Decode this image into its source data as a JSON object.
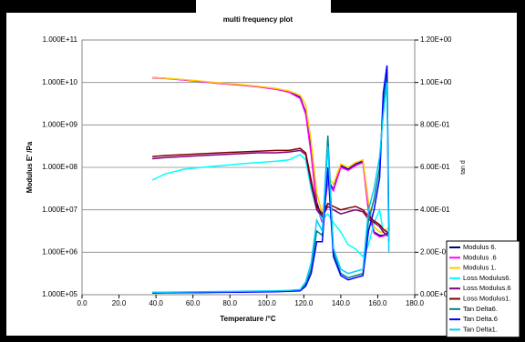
{
  "chart_data": {
    "type": "line",
    "title": "multi frequency plot",
    "x_label": "Temperature /°C",
    "y_label": "Modulus  E' /Pa",
    "y2_label": "tan d",
    "log_y": true,
    "grid": true,
    "legend": "lower right",
    "xlim": [
      0,
      180
    ],
    "xticks": [
      {
        "value": 0,
        "label": "0.0"
      },
      {
        "value": 20,
        "label": "20.0"
      },
      {
        "value": 40,
        "label": "40.0"
      },
      {
        "value": 60,
        "label": "60.0"
      },
      {
        "value": 80,
        "label": "80.0"
      },
      {
        "value": 100,
        "label": "100.0"
      },
      {
        "value": 120,
        "label": "120.0"
      },
      {
        "value": 140,
        "label": "140.0"
      },
      {
        "value": 160,
        "label": "160.0"
      },
      {
        "value": 180,
        "label": "180.0"
      }
    ],
    "ylim": [
      100000,
      100000000000
    ],
    "yticks": [
      {
        "value": 100000,
        "label": "1.000E+05"
      },
      {
        "value": 1000000,
        "label": "1.000E+06"
      },
      {
        "value": 10000000,
        "label": "1.000E+07"
      },
      {
        "value": 100000000,
        "label": "1.000E+08"
      },
      {
        "value": 1000000000,
        "label": "1.000E+09"
      },
      {
        "value": 10000000000,
        "label": "1.000E+10"
      },
      {
        "value": 100000000000,
        "label": "1.000E+11"
      }
    ],
    "y2lim": [
      0,
      1.2
    ],
    "y2ticks": [
      {
        "value": 0,
        "label": "0.00E+00"
      },
      {
        "value": 0.2,
        "label": "2.00E-01"
      },
      {
        "value": 0.4,
        "label": "4.00E-01"
      },
      {
        "value": 0.6,
        "label": "6.00E-01"
      },
      {
        "value": 0.8,
        "label": "8.00E-01"
      },
      {
        "value": 1.0,
        "label": "1.00E+00"
      },
      {
        "value": 1.2,
        "label": "1.20E+00"
      }
    ],
    "x": [
      38,
      45,
      55,
      65,
      75,
      85,
      95,
      105,
      112,
      118,
      121,
      124,
      127,
      130,
      133,
      136,
      140,
      144,
      148,
      152,
      155,
      158,
      161,
      163,
      165,
      166
    ],
    "series": [
      {
        "name": "Modulus 6.",
        "color": "#000080",
        "values": [
          13000000000.0,
          12500000000.0,
          11500000000.0,
          10500000000.0,
          9500000000.0,
          8800000000.0,
          8000000000.0,
          7000000000.0,
          6000000000.0,
          4500000000.0,
          2000000000.0,
          250000000.0,
          15000000.0,
          6000000.0,
          50000000.0,
          30000000.0,
          110000000.0,
          90000000.0,
          120000000.0,
          140000000.0,
          10000000.0,
          3000000.0,
          2500000.0,
          2500000.0,
          2800000.0,
          3000000.0
        ]
      },
      {
        "name": "Modulus .6",
        "color": "#ff00ff",
        "values": [
          12800000000.0,
          12400000000.0,
          11400000000.0,
          10400000000.0,
          9400000000.0,
          8700000000.0,
          7900000000.0,
          6900000000.0,
          5900000000.0,
          4200000000.0,
          1800000000.0,
          200000000.0,
          12000000.0,
          5000000.0,
          45000000.0,
          28000000.0,
          100000000.0,
          85000000.0,
          110000000.0,
          130000000.0,
          9000000.0,
          2800000.0,
          2300000.0,
          2400000.0,
          2600000.0,
          2800000.0
        ]
      },
      {
        "name": "Modulus 1.",
        "color": "#ffcc00",
        "values": [
          13000000000.0,
          12600000000.0,
          11700000000.0,
          10700000000.0,
          9700000000.0,
          9000000000.0,
          8200000000.0,
          7200000000.0,
          6300000000.0,
          5000000000.0,
          3000000000.0,
          400000000.0,
          25000000.0,
          8000000.0,
          60000000.0,
          40000000.0,
          120000000.0,
          100000000.0,
          130000000.0,
          150000000.0,
          15000000.0,
          4000000.0,
          3000000.0,
          3000000.0,
          3500000.0,
          3500000.0
        ]
      },
      {
        "name": "Loss Modulus6.",
        "color": "#00ffff",
        "values": [
          50000000.0,
          70000000.0,
          90000000.0,
          100000000.0,
          110000000.0,
          120000000.0,
          130000000.0,
          140000000.0,
          150000000.0,
          200000000.0,
          150000000.0,
          30000000.0,
          10000000.0,
          6000000.0,
          8000000.0,
          5000000.0,
          3000000.0,
          1500000.0,
          1200000.0,
          800000.0,
          1500000.0,
          5000000.0,
          10000000.0,
          3000000.0,
          2500000.0,
          2500000.0
        ]
      },
      {
        "name": "Loss Modulus.6",
        "color": "#800080",
        "values": [
          160000000.0,
          170000000.0,
          180000000.0,
          190000000.0,
          200000000.0,
          210000000.0,
          220000000.0,
          220000000.0,
          230000000.0,
          250000000.0,
          200000000.0,
          40000000.0,
          10000000.0,
          7000000.0,
          12000000.0,
          10000000.0,
          8000000.0,
          9000000.0,
          10000000.0,
          9000000.0,
          6000000.0,
          5000000.0,
          4000000.0,
          3000000.0,
          2500000.0,
          2500000.0
        ]
      },
      {
        "name": "Loss Modulus1.",
        "color": "#800000",
        "values": [
          180000000.0,
          190000000.0,
          200000000.0,
          210000000.0,
          220000000.0,
          230000000.0,
          240000000.0,
          250000000.0,
          250000000.0,
          280000000.0,
          220000000.0,
          50000000.0,
          12000000.0,
          8000000.0,
          14000000.0,
          12000000.0,
          10000000.0,
          11000000.0,
          12000000.0,
          10000000.0,
          7000000.0,
          5500000.0,
          4500000.0,
          3500000.0,
          3000000.0,
          2800000.0
        ]
      },
      {
        "name": "Tan Delta6.",
        "color": "#008080",
        "axis": "y2",
        "values": [
          0.01,
          0.01,
          0.012,
          0.012,
          0.013,
          0.014,
          0.015,
          0.016,
          0.018,
          0.02,
          0.05,
          0.12,
          0.3,
          0.28,
          0.75,
          0.2,
          0.1,
          0.08,
          0.09,
          0.1,
          0.35,
          0.45,
          0.6,
          0.9,
          1.05,
          0.25
        ]
      },
      {
        "name": "Tan Delta.6",
        "color": "#0000ff",
        "axis": "y2",
        "values": [
          0.008,
          0.009,
          0.01,
          0.01,
          0.011,
          0.012,
          0.013,
          0.014,
          0.016,
          0.018,
          0.04,
          0.1,
          0.25,
          0.25,
          0.6,
          0.18,
          0.09,
          0.07,
          0.08,
          0.09,
          0.3,
          0.4,
          0.55,
          0.95,
          1.08,
          0.3
        ]
      },
      {
        "name": "Tan Delta1.",
        "color": "#00ccff",
        "axis": "y2",
        "values": [
          0.012,
          0.012,
          0.013,
          0.014,
          0.015,
          0.016,
          0.017,
          0.018,
          0.02,
          0.024,
          0.06,
          0.15,
          0.35,
          0.3,
          0.7,
          0.22,
          0.12,
          0.1,
          0.11,
          0.12,
          0.4,
          0.5,
          0.65,
          0.85,
          1.0,
          0.2
        ]
      }
    ]
  }
}
